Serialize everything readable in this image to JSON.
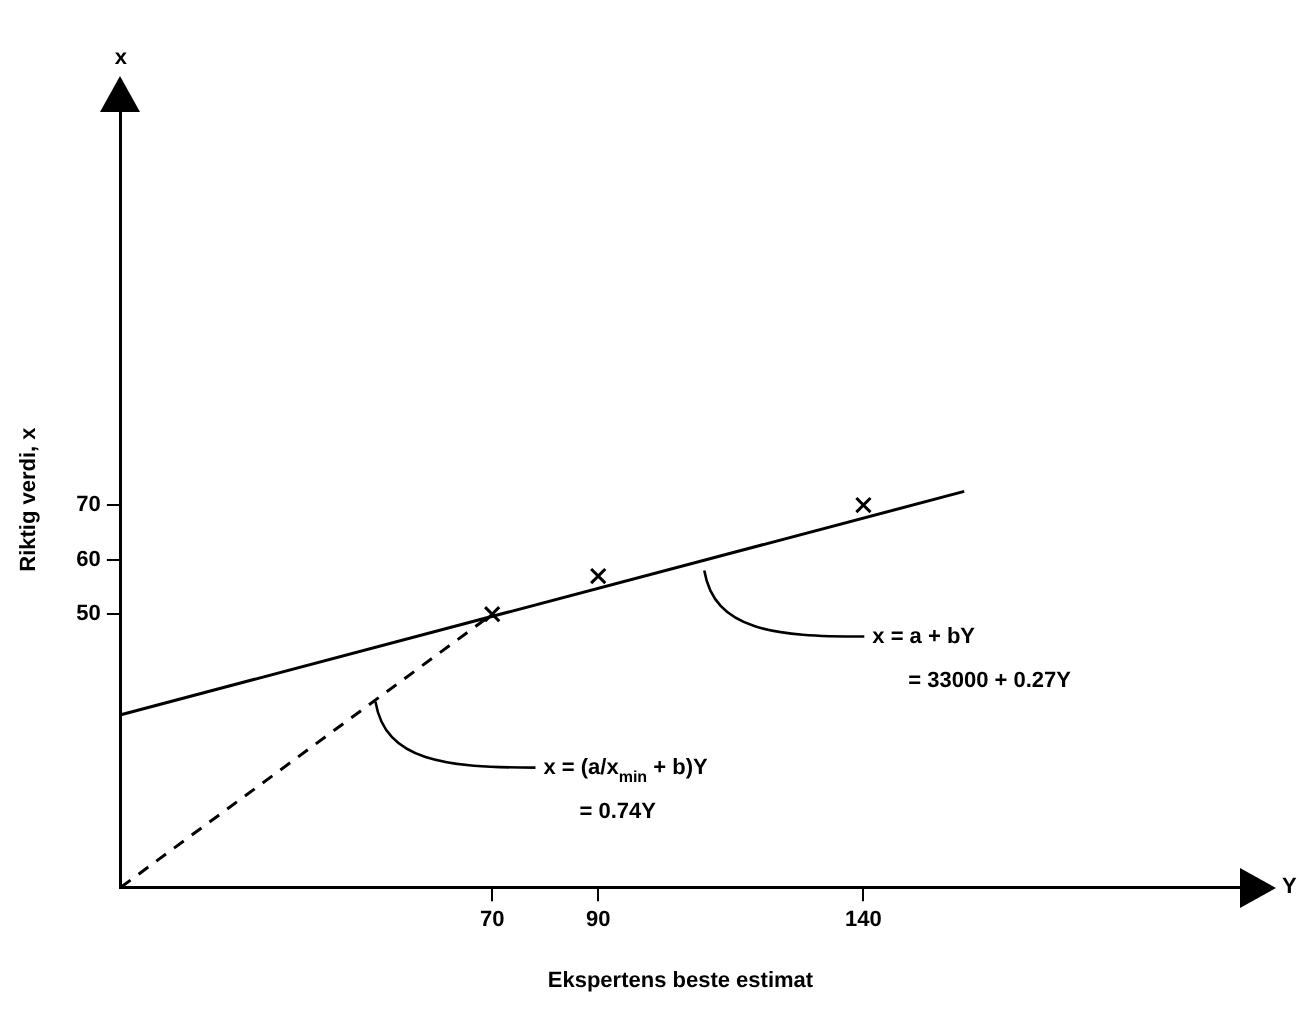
{
  "chart_data": {
    "type": "scatter",
    "xlabel": "Ekspertens beste estimat",
    "ylabel": "Riktig verdi, x",
    "xlim": [
      0,
      211
    ],
    "ylim": [
      0,
      142
    ],
    "xticks": [
      70,
      90,
      140
    ],
    "yticks": [
      50,
      60,
      70
    ],
    "grid": false,
    "legend": false,
    "series": [
      {
        "color": "#000000",
        "marker": "cross",
        "x": [
          70,
          90,
          140
        ],
        "values": [
          50,
          57,
          70
        ]
      },
      {
        "type": "line",
        "color": "#000000",
        "marker": "none",
        "line_style": "solid",
        "x": [
          0,
          159
        ],
        "values": [
          31.6,
          72.5
        ]
      },
      {
        "type": "line",
        "color": "#000000",
        "marker": "none",
        "line_style": "dashed",
        "x": [
          0,
          70
        ],
        "values": [
          0,
          50
        ]
      }
    ],
    "annotations": [
      {
        "text": "x = a + bY\n= 33000 + 0.27Y",
        "x": 110,
        "y": 58
      },
      {
        "text": "x = (a/x$_{min}$ + b)Y\n= 0.74Y",
        "x": 48,
        "y": 34
      },
      "Y",
      "x"
    ]
  }
}
